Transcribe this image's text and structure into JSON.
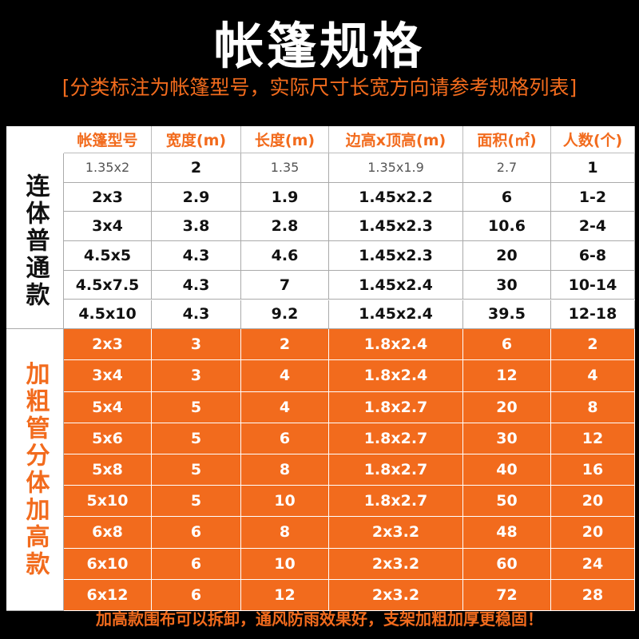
{
  "header": {
    "title": "帐篷规格",
    "subtitle": "[分类标注为帐篷型号，实际尺寸长宽方向请参考规格列表]"
  },
  "table": {
    "columns": [
      "帐篷型号",
      "宽度(m)",
      "长度(m)",
      "边高x顶高(m)",
      "面积(㎡)",
      "人数(个)"
    ],
    "groups": [
      {
        "label": "连体普通款",
        "rows": [
          [
            "1.35x2",
            "2",
            "1.35",
            "1.35x1.9",
            "2.7",
            "1"
          ],
          [
            "2x3",
            "2.9",
            "1.9",
            "1.45x2.2",
            "6",
            "1-2"
          ],
          [
            "3x4",
            "3.8",
            "2.8",
            "1.45x2.3",
            "10.6",
            "2-4"
          ],
          [
            "4.5x5",
            "4.3",
            "4.6",
            "1.45x2.3",
            "20",
            "6-8"
          ],
          [
            "4.5x7.5",
            "4.3",
            "7",
            "1.45x2.4",
            "30",
            "10-14"
          ],
          [
            "4.5x10",
            "4.3",
            "9.2",
            "1.45x2.4",
            "39.5",
            "12-18"
          ]
        ]
      },
      {
        "label": "加粗管分体加高款",
        "rows": [
          [
            "2x3",
            "3",
            "2",
            "1.8x2.4",
            "6",
            "2"
          ],
          [
            "3x4",
            "3",
            "4",
            "1.8x2.4",
            "12",
            "4"
          ],
          [
            "5x4",
            "5",
            "4",
            "1.8x2.7",
            "20",
            "8"
          ],
          [
            "5x6",
            "5",
            "6",
            "1.8x2.7",
            "30",
            "12"
          ],
          [
            "5x8",
            "5",
            "8",
            "1.8x2.7",
            "40",
            "16"
          ],
          [
            "5x10",
            "5",
            "10",
            "1.8x2.7",
            "50",
            "20"
          ],
          [
            "6x8",
            "6",
            "8",
            "2x3.2",
            "48",
            "20"
          ],
          [
            "6x10",
            "6",
            "10",
            "2x3.2",
            "60",
            "24"
          ],
          [
            "6x12",
            "6",
            "12",
            "2x3.2",
            "72",
            "28"
          ]
        ]
      }
    ]
  },
  "footer": "加高款围布可以拆卸，通风防雨效果好，支架加粗加厚更稳固！"
}
